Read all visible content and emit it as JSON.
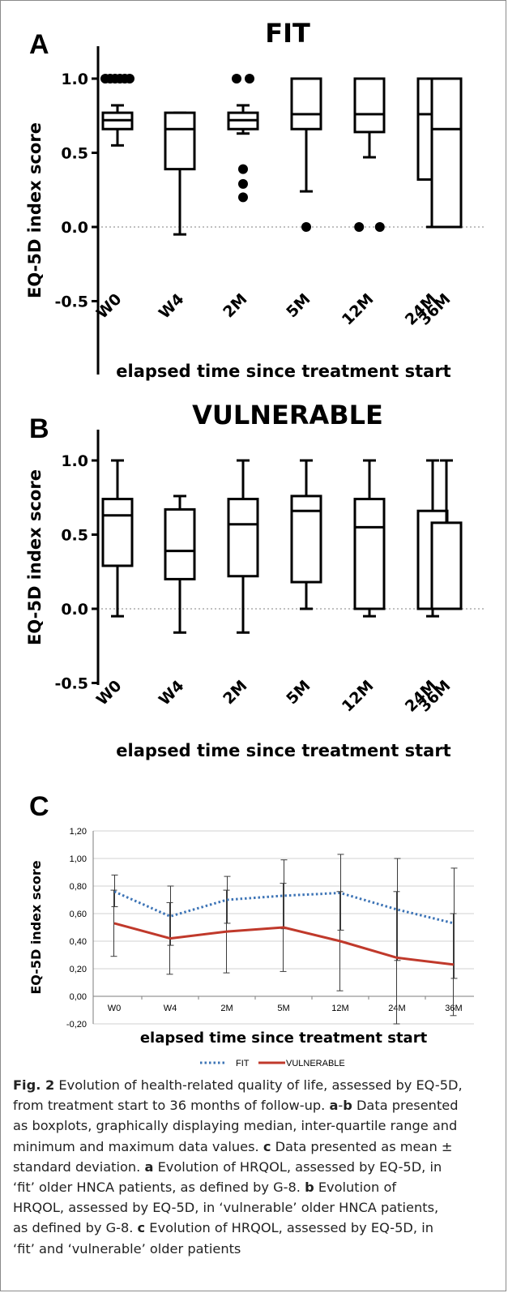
{
  "caption": {
    "fig_label": "Fig. 2",
    "lines": [
      {
        "segs": [
          {
            "b": false,
            "t": " Evolution of health-related quality of life, assessed by EQ-5D,"
          }
        ]
      },
      {
        "segs": [
          {
            "b": false,
            "t": "from treatment start to 36 months of follow-up. "
          },
          {
            "b": true,
            "t": "a"
          },
          {
            "b": false,
            "t": "-"
          },
          {
            "b": true,
            "t": "b"
          },
          {
            "b": false,
            "t": " Data presented"
          }
        ]
      },
      {
        "segs": [
          {
            "b": false,
            "t": "as boxplots, graphically displaying median, inter-quartile range and"
          }
        ]
      },
      {
        "segs": [
          {
            "b": false,
            "t": "minimum and maximum data values. "
          },
          {
            "b": true,
            "t": "c"
          },
          {
            "b": false,
            "t": " Data presented as mean ±"
          }
        ]
      },
      {
        "segs": [
          {
            "b": false,
            "t": "standard deviation. "
          },
          {
            "b": true,
            "t": "a"
          },
          {
            "b": false,
            "t": "  Evolution of HRQOL, assessed by EQ-5D, in"
          }
        ]
      },
      {
        "segs": [
          {
            "b": false,
            "t": "‘fit’ older HNCA patients, as defined by G-8. "
          },
          {
            "b": true,
            "t": "b"
          },
          {
            "b": false,
            "t": " Evolution of"
          }
        ]
      },
      {
        "segs": [
          {
            "b": false,
            "t": "HRQOL, assessed by EQ-5D, in ‘vulnerable’ older HNCA patients,"
          }
        ]
      },
      {
        "segs": [
          {
            "b": false,
            "t": "as defined by G-8. "
          },
          {
            "b": true,
            "t": "c"
          },
          {
            "b": false,
            "t": " Evolution of HRQOL, assessed by EQ-5D, in"
          }
        ]
      },
      {
        "segs": [
          {
            "b": false,
            "t": "‘fit’ and ‘vulnerable’ older patients"
          }
        ]
      }
    ]
  },
  "chart_data": [
    {
      "panel": "A",
      "type": "boxplot",
      "title": "FIT",
      "ylabel": "EQ-5D index score",
      "xlabel": "elapsed time since treatment start",
      "categories": [
        "W0",
        "W4",
        "2M",
        "5M",
        "12M",
        "24M",
        "36M"
      ],
      "ylim": [
        -0.5,
        1.15
      ],
      "yticks": [
        -0.5,
        0.0,
        0.5,
        1.0
      ],
      "yticklabels": [
        "-0.5",
        "0.0",
        "0.5",
        "1.0"
      ],
      "zero_line": true,
      "boxes": [
        {
          "min": 0.55,
          "q1": 0.66,
          "median": 0.72,
          "q3": 0.77,
          "max": 0.82,
          "outliers": [
            1.0,
            1.0,
            1.0,
            1.0,
            1.0,
            1.0
          ]
        },
        {
          "min": -0.05,
          "q1": 0.39,
          "median": 0.66,
          "q3": 0.77,
          "max": 0.77,
          "outliers": []
        },
        {
          "min": 0.63,
          "q1": 0.66,
          "median": 0.72,
          "q3": 0.77,
          "max": 0.82,
          "outliers": [
            1.0,
            1.0,
            0.39,
            0.29,
            0.2
          ]
        },
        {
          "min": 0.24,
          "q1": 0.66,
          "median": 0.76,
          "q3": 1.0,
          "max": 1.0,
          "outliers": [
            0.0
          ]
        },
        {
          "min": 0.47,
          "q1": 0.64,
          "median": 0.76,
          "q3": 1.0,
          "max": 1.0,
          "outliers": [
            0.0,
            0.0
          ]
        },
        {
          "min": 0.0,
          "q1": 0.32,
          "median": 0.76,
          "q3": 1.0,
          "max": 1.0,
          "outliers": []
        },
        {
          "min": 0.0,
          "q1": 0.0,
          "median": 0.66,
          "q3": 1.0,
          "max": 1.0,
          "outliers": []
        }
      ]
    },
    {
      "panel": "B",
      "type": "boxplot",
      "title": "VULNERABLE",
      "ylabel": "EQ-5D index score",
      "xlabel": "elapsed time since treatment start",
      "categories": [
        "W0",
        "W4",
        "2M",
        "5M",
        "12M",
        "24M",
        "36M"
      ],
      "ylim": [
        -0.5,
        1.15
      ],
      "yticks": [
        -0.5,
        0.0,
        0.5,
        1.0
      ],
      "yticklabels": [
        "-0.5",
        "0.0",
        "0.5",
        "1.0"
      ],
      "zero_line": true,
      "boxes": [
        {
          "min": -0.05,
          "q1": 0.29,
          "median": 0.63,
          "q3": 0.74,
          "max": 1.0,
          "outliers": []
        },
        {
          "min": -0.16,
          "q1": 0.2,
          "median": 0.39,
          "q3": 0.67,
          "max": 0.76,
          "outliers": []
        },
        {
          "min": -0.16,
          "q1": 0.22,
          "median": 0.57,
          "q3": 0.74,
          "max": 1.0,
          "outliers": []
        },
        {
          "min": 0.0,
          "q1": 0.18,
          "median": 0.66,
          "q3": 0.76,
          "max": 1.0,
          "outliers": []
        },
        {
          "min": -0.05,
          "q1": 0.0,
          "median": 0.55,
          "q3": 0.74,
          "max": 1.0,
          "outliers": []
        },
        {
          "min": -0.05,
          "q1": 0.0,
          "median": 0.0,
          "q3": 0.66,
          "max": 1.0,
          "outliers": []
        },
        {
          "min": 0.0,
          "q1": 0.0,
          "median": 0.0,
          "q3": 0.58,
          "max": 1.0,
          "outliers": []
        }
      ]
    },
    {
      "panel": "C",
      "type": "line",
      "ylabel": "EQ-5D index score",
      "xlabel": "elapsed time since treatment start",
      "categories": [
        "W0",
        "W4",
        "2M",
        "5M",
        "12M",
        "24M",
        "36M"
      ],
      "ylim": [
        -0.2,
        1.2
      ],
      "yticks": [
        -0.2,
        0.0,
        0.2,
        0.4,
        0.6,
        0.8,
        1.0,
        1.2
      ],
      "yticklabels": [
        "-0,20",
        "0,00",
        "0,20",
        "0,40",
        "0,60",
        "0,80",
        "1,00",
        "1,20"
      ],
      "grid": "horizontal",
      "legend_position": "bottom",
      "series": [
        {
          "name": "FIT",
          "style": "dotted",
          "color": "#3d74b6",
          "mean": [
            0.76,
            0.58,
            0.7,
            0.73,
            0.75,
            0.63,
            0.53
          ],
          "error": [
            [
              0.65,
              0.88
            ],
            [
              0.37,
              0.8
            ],
            [
              0.53,
              0.87
            ],
            [
              0.49,
              0.99
            ],
            [
              0.48,
              1.03
            ],
            [
              0.26,
              1.0
            ],
            [
              0.13,
              0.93
            ]
          ]
        },
        {
          "name": "VULNERABLE",
          "style": "solid",
          "color": "#c0392b",
          "mean": [
            0.53,
            0.42,
            0.47,
            0.5,
            0.4,
            0.28,
            0.23
          ],
          "error": [
            [
              0.29,
              0.77
            ],
            [
              0.16,
              0.68
            ],
            [
              0.17,
              0.77
            ],
            [
              0.18,
              0.82
            ],
            [
              0.04,
              0.76
            ],
            [
              -0.2,
              0.76
            ],
            [
              -0.14,
              0.6
            ]
          ]
        }
      ]
    }
  ]
}
